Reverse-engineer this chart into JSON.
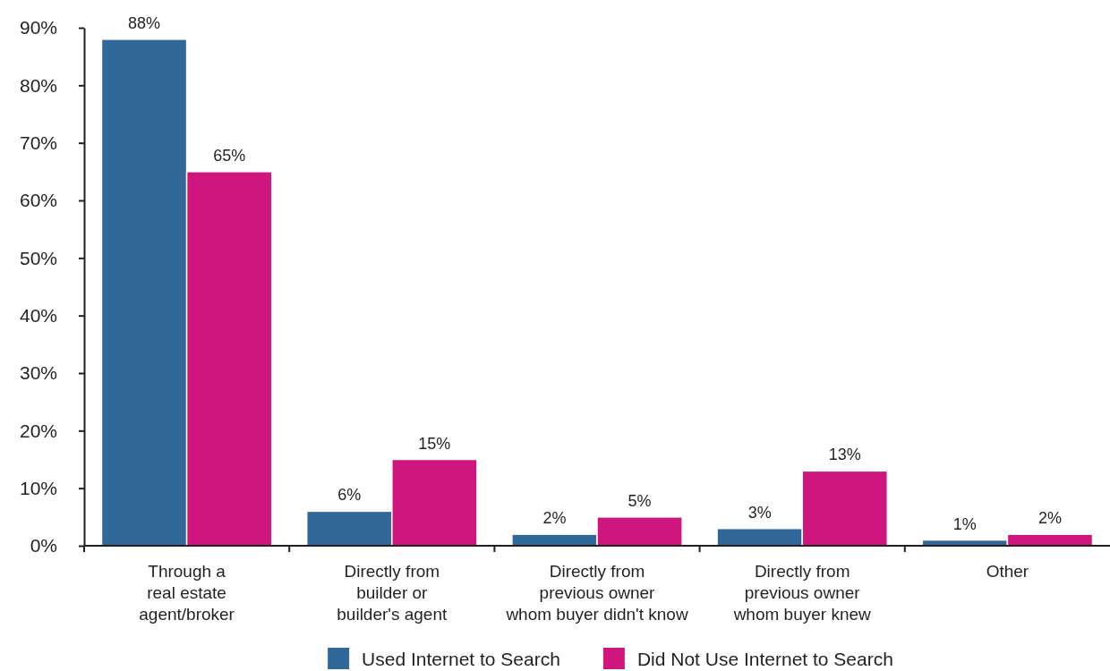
{
  "chart_data": {
    "type": "bar",
    "categories": [
      "Through a\nreal estate\nagent/broker",
      "Directly from\nbuilder or\nbuilder's agent",
      "Directly from\nprevious owner\nwhom buyer didn't know",
      "Directly from\nprevious owner\nwhom buyer knew",
      "Other"
    ],
    "series": [
      {
        "name": "Used Internet to Search",
        "color": "#2f6899",
        "values": [
          88,
          6,
          2,
          3,
          1
        ],
        "value_labels": [
          "88%",
          "6%",
          "2%",
          "3%",
          "1%"
        ]
      },
      {
        "name": "Did Not Use Internet to Search",
        "color": "#cf167f",
        "values": [
          65,
          15,
          5,
          13,
          2
        ],
        "value_labels": [
          "65%",
          "15%",
          "5%",
          "13%",
          "2%"
        ]
      }
    ],
    "ylim": [
      0,
      90
    ],
    "yticks": [
      {
        "value": 0,
        "label": "0%"
      },
      {
        "value": 10,
        "label": "10%"
      },
      {
        "value": 20,
        "label": "20%"
      },
      {
        "value": 30,
        "label": "30%"
      },
      {
        "value": 40,
        "label": "40%"
      },
      {
        "value": 50,
        "label": "50%"
      },
      {
        "value": 60,
        "label": "60%"
      },
      {
        "value": 70,
        "label": "70%"
      },
      {
        "value": 80,
        "label": "80%"
      },
      {
        "value": 90,
        "label": "90%"
      }
    ],
    "legend": "bottom"
  }
}
